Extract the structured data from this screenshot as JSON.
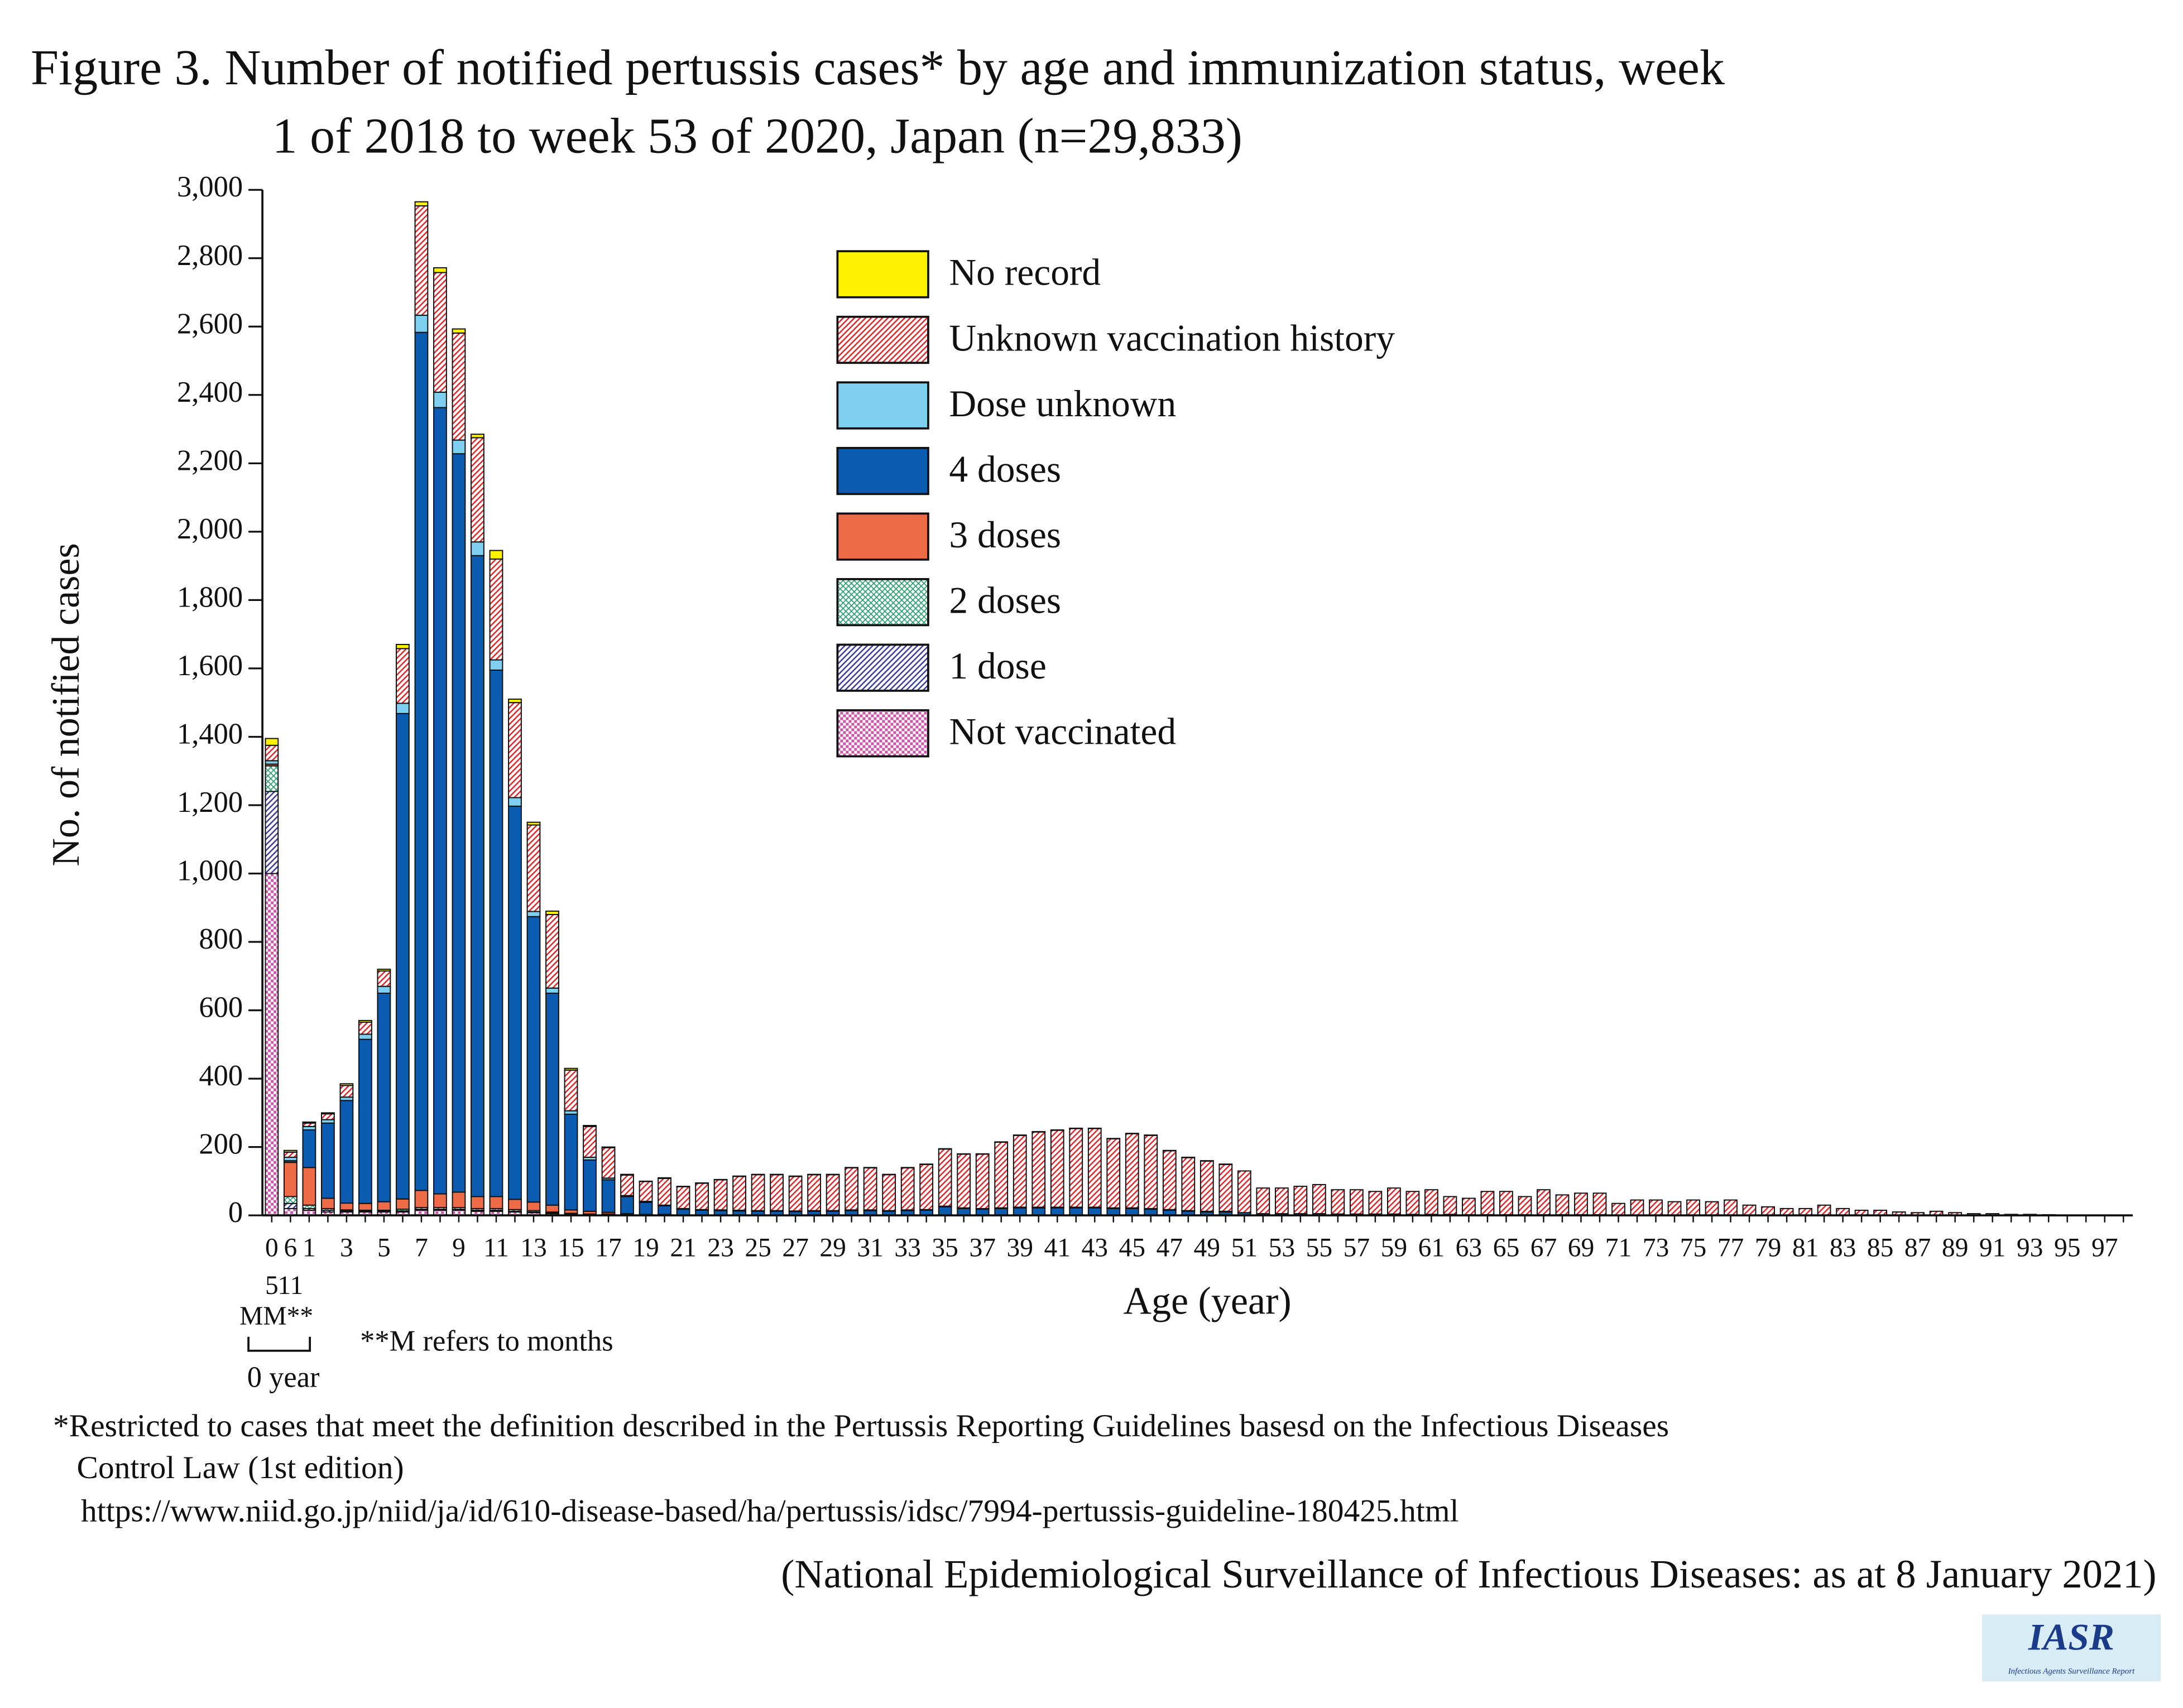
{
  "chart_data": {
    "type": "stacked_bar",
    "title_lines": [
      "Figure 3. Number of notified pertussis cases* by age and immunization status, week",
      "1 of 2018 to week 53 of 2020, Japan (n=29,833)"
    ],
    "y_label": "No. of notified cases",
    "x_label": "Age (year)",
    "categories": [
      "0",
      "6",
      "1",
      null,
      "3",
      null,
      "5",
      null,
      "7",
      null,
      "9",
      null,
      "11",
      null,
      "13",
      null,
      "15",
      null,
      "17",
      null,
      "19",
      null,
      "21",
      null,
      "23",
      null,
      "25",
      null,
      "27",
      null,
      "29",
      null,
      "31",
      null,
      "33",
      null,
      "35",
      null,
      "37",
      null,
      "39",
      null,
      "41",
      null,
      "43",
      null,
      "45",
      null,
      "47",
      null,
      "49",
      null,
      "51",
      null,
      "53",
      null,
      "55",
      null,
      "57",
      null,
      "59",
      null,
      "61",
      null,
      "63",
      null,
      "65",
      null,
      "67",
      null,
      "69",
      null,
      "71",
      null,
      "73",
      null,
      "75",
      null,
      "77",
      null,
      "79",
      null,
      "81",
      null,
      "83",
      null,
      "85",
      null,
      "87",
      null,
      "89",
      null,
      "91",
      null,
      "93",
      null,
      "95",
      null,
      "97",
      null
    ],
    "x_sublabels": [
      "5",
      "11"
    ],
    "month_label": "MM**",
    "bracket_label": "0 year",
    "month_note": "**M refers to months",
    "ylim": [
      0,
      3000
    ],
    "yticks": [
      0,
      200,
      400,
      600,
      800,
      {
        "value": 1000,
        "label": "1,000"
      },
      {
        "value": 1200,
        "label": "1,200"
      },
      {
        "value": 1400,
        "label": "1,400"
      },
      {
        "value": 1600,
        "label": "1,600"
      },
      {
        "value": 1800,
        "label": "1,800"
      },
      {
        "value": 2000,
        "label": "2,000"
      },
      {
        "value": 2200,
        "label": "2,200"
      },
      {
        "value": 2400,
        "label": "2,400"
      },
      {
        "value": 2600,
        "label": "2,600"
      },
      {
        "value": 2800,
        "label": "2,800"
      },
      {
        "value": 3000,
        "label": "3,000"
      }
    ],
    "grid": false,
    "legend_position": "top-center",
    "series": [
      {
        "name": "Not vaccinated",
        "color": "#cc55aa",
        "pattern": "check",
        "values": [
          1000,
          20,
          15,
          10,
          10,
          10,
          10,
          10,
          15,
          15,
          15,
          12,
          12,
          10,
          8,
          5,
          3,
          2,
          2,
          1,
          1,
          1,
          0,
          0,
          0,
          0,
          0,
          0,
          0,
          0,
          0,
          0,
          0,
          0,
          0,
          0,
          0,
          0,
          0,
          0,
          0,
          0,
          0,
          0,
          0,
          0,
          0,
          0,
          0,
          0,
          0,
          0,
          0,
          0,
          0,
          0,
          0,
          0,
          0,
          0,
          0,
          0,
          0,
          0,
          0,
          0,
          0,
          0,
          0,
          0,
          0,
          0,
          0,
          0,
          0,
          0,
          0,
          0,
          0,
          0,
          0,
          0,
          0,
          0,
          0,
          0,
          0,
          0,
          0,
          0,
          0,
          0,
          0,
          0,
          0,
          0,
          0,
          0,
          0,
          0
        ]
      },
      {
        "name": "1 dose",
        "color": "#3a3a9a",
        "pattern": "hatch",
        "values": [
          240,
          15,
          5,
          5,
          3,
          2,
          2,
          3,
          3,
          3,
          3,
          3,
          3,
          2,
          2,
          2,
          1,
          1,
          1,
          0,
          0,
          0,
          0,
          0,
          0,
          0,
          0,
          0,
          0,
          0,
          0,
          0,
          0,
          0,
          0,
          0,
          0,
          0,
          0,
          0,
          0,
          0,
          0,
          0,
          0,
          0,
          0,
          0,
          0,
          0,
          0,
          0,
          0,
          0,
          0,
          0,
          0,
          0,
          0,
          0,
          0,
          0,
          0,
          0,
          0,
          0,
          0,
          0,
          0,
          0,
          0,
          0,
          0,
          0,
          0,
          0,
          0,
          0,
          0,
          0,
          0,
          0,
          0,
          0,
          0,
          0,
          0,
          0,
          0,
          0,
          0,
          0,
          0,
          0,
          0,
          0,
          0,
          0,
          0,
          0
        ]
      },
      {
        "name": "2 doses",
        "color": "#2aa070",
        "pattern": "cross",
        "values": [
          75,
          20,
          10,
          5,
          3,
          3,
          3,
          5,
          5,
          5,
          5,
          5,
          5,
          5,
          4,
          3,
          2,
          1,
          1,
          1,
          0,
          0,
          0,
          0,
          0,
          0,
          0,
          0,
          0,
          0,
          0,
          0,
          0,
          0,
          0,
          0,
          0,
          0,
          0,
          0,
          0,
          0,
          0,
          0,
          0,
          0,
          0,
          0,
          0,
          0,
          0,
          0,
          0,
          0,
          0,
          0,
          0,
          0,
          0,
          0,
          0,
          0,
          0,
          0,
          0,
          0,
          0,
          0,
          0,
          0,
          0,
          0,
          0,
          0,
          0,
          0,
          0,
          0,
          0,
          0,
          0,
          0,
          0,
          0,
          0,
          0,
          0,
          0,
          0,
          0,
          0,
          0,
          0,
          0,
          0,
          0,
          0,
          0,
          0,
          0
        ]
      },
      {
        "name": "3 doses",
        "color": "#ee6b47",
        "pattern": "solid",
        "values": [
          5,
          100,
          110,
          30,
          20,
          20,
          25,
          30,
          50,
          40,
          45,
          35,
          35,
          30,
          25,
          20,
          10,
          8,
          5,
          3,
          2,
          2,
          0,
          0,
          0,
          0,
          0,
          0,
          0,
          0,
          0,
          0,
          0,
          0,
          0,
          0,
          0,
          0,
          0,
          0,
          0,
          0,
          0,
          0,
          0,
          0,
          0,
          0,
          0,
          0,
          0,
          0,
          0,
          0,
          0,
          0,
          0,
          0,
          0,
          0,
          0,
          0,
          0,
          0,
          0,
          0,
          0,
          0,
          0,
          0,
          0,
          0,
          0,
          0,
          0,
          0,
          0,
          0,
          0,
          0,
          0,
          0,
          0,
          0,
          0,
          0,
          0,
          0,
          0,
          0,
          0,
          0,
          0,
          0,
          0,
          0,
          0,
          0,
          0,
          0
        ]
      },
      {
        "name": "4 doses",
        "color": "#0b5bb0",
        "pattern": "solid",
        "values": [
          0,
          5,
          110,
          220,
          300,
          480,
          610,
          1420,
          2510,
          2300,
          2160,
          1875,
          1540,
          1150,
          835,
          620,
          280,
          150,
          95,
          50,
          35,
          25,
          18,
          15,
          14,
          13,
          12,
          12,
          11,
          12,
          12,
          14,
          14,
          12,
          14,
          15,
          25,
          20,
          18,
          20,
          22,
          22,
          22,
          22,
          22,
          20,
          20,
          18,
          15,
          12,
          10,
          10,
          8,
          5,
          5,
          5,
          5,
          4,
          4,
          4,
          4,
          3,
          3,
          3,
          2,
          2,
          2,
          2,
          2,
          2,
          2,
          2,
          1,
          1,
          1,
          1,
          1,
          1,
          1,
          1,
          1,
          0,
          0,
          0,
          0,
          0,
          0,
          0,
          0,
          0,
          0,
          0,
          0,
          0,
          0,
          0,
          0,
          0,
          0,
          0
        ]
      },
      {
        "name": "Dose unknown",
        "color": "#7fcff0",
        "pattern": "solid",
        "values": [
          10,
          10,
          10,
          10,
          10,
          15,
          20,
          30,
          50,
          45,
          40,
          40,
          30,
          25,
          15,
          15,
          10,
          8,
          5,
          3,
          3,
          2,
          2,
          2,
          2,
          2,
          2,
          2,
          2,
          2,
          2,
          2,
          2,
          2,
          2,
          2,
          2,
          2,
          2,
          2,
          2,
          2,
          2,
          2,
          2,
          2,
          2,
          2,
          2,
          2,
          2,
          2,
          0,
          0,
          0,
          0,
          0,
          0,
          0,
          0,
          0,
          0,
          0,
          0,
          0,
          0,
          0,
          0,
          0,
          0,
          0,
          0,
          0,
          0,
          0,
          0,
          0,
          0,
          0,
          0,
          0,
          0,
          0,
          0,
          0,
          0,
          0,
          0,
          0,
          0,
          0,
          0,
          0,
          0,
          0,
          0,
          0,
          0,
          0,
          0
        ]
      },
      {
        "name": "Unknown vaccination history",
        "color": "#e0242a",
        "pattern": "hatch",
        "values": [
          45,
          15,
          10,
          17,
          34,
          35,
          45,
          160,
          320,
          350,
          313,
          305,
          295,
          278,
          253,
          215,
          119,
          90,
          89,
          60,
          58,
          78,
          64,
          77,
          88,
          99,
          105,
          105,
          101,
          105,
          105,
          123,
          123,
          105,
          123,
          132,
          167,
          157,
          159,
          192,
          210,
          220,
          225,
          230,
          230,
          202,
          217,
          214,
          172,
          155,
          147,
          137,
          122,
          75,
          75,
          80,
          85,
          71,
          71,
          66,
          76,
          67,
          72,
          52,
          48,
          68,
          68,
          53,
          73,
          58,
          63,
          63,
          34,
          44,
          44,
          39,
          44,
          39,
          44,
          29,
          24,
          20,
          20,
          30,
          20,
          15,
          15,
          10,
          8,
          12,
          8,
          5,
          5,
          3,
          3,
          2,
          1,
          1,
          1,
          0
        ]
      },
      {
        "name": "No record",
        "color": "#fff200",
        "pattern": "solid",
        "values": [
          20,
          5,
          3,
          3,
          5,
          5,
          5,
          12,
          12,
          14,
          12,
          10,
          25,
          10,
          8,
          10,
          5,
          3,
          2,
          2,
          1,
          2,
          1,
          1,
          1,
          1,
          1,
          1,
          1,
          1,
          1,
          1,
          1,
          1,
          1,
          1,
          1,
          1,
          1,
          1,
          1,
          1,
          1,
          1,
          1,
          1,
          1,
          1,
          1,
          1,
          1,
          1,
          0,
          0,
          0,
          0,
          0,
          0,
          0,
          0,
          0,
          0,
          0,
          0,
          0,
          0,
          0,
          0,
          0,
          0,
          0,
          0,
          0,
          0,
          0,
          0,
          0,
          0,
          0,
          0,
          0,
          0,
          0,
          0,
          0,
          0,
          0,
          0,
          0,
          0,
          0,
          0,
          0,
          0,
          0,
          0,
          0,
          0,
          0,
          0
        ]
      }
    ]
  },
  "footnote_lines": [
    "*Restricted to cases that meet the definition described in the Pertussis Reporting Guidelines basesd on the Infectious Diseases",
    "Control Law (1st edition)",
    "https://www.niid.go.jp/niid/ja/id/610-disease-based/ha/pertussis/idsc/7994-pertussis-guideline-180425.html"
  ],
  "source": "(National Epidemiological Surveillance of Infectious Diseases: as at 8 January 2021)",
  "logo": {
    "title": "IASR",
    "subtitle": "Infectious Agents Surveillance Report"
  }
}
